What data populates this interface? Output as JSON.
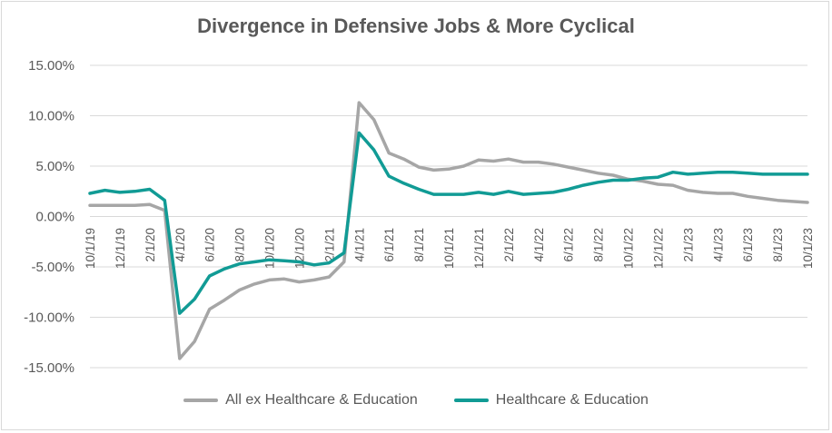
{
  "chart_data": {
    "type": "line",
    "title": "Divergence in Defensive Jobs & More Cyclical",
    "xlabel": "",
    "ylabel": "",
    "ylim": [
      -0.15,
      0.15
    ],
    "yticks": [
      0.15,
      0.1,
      0.05,
      0.0,
      -0.05,
      -0.1,
      -0.15
    ],
    "ytick_labels": [
      "15.00%",
      "10.00%",
      "5.00%",
      "0.00%",
      "-5.00%",
      "-10.00%",
      "-15.00%"
    ],
    "x_tick_labels": [
      "10/1/19",
      "12/1/19",
      "2/1/20",
      "4/1/20",
      "6/1/20",
      "8/1/20",
      "10/1/20",
      "12/1/20",
      "2/1/21",
      "4/1/21",
      "6/1/21",
      "8/1/21",
      "10/1/21",
      "12/1/21",
      "2/1/22",
      "4/1/22",
      "6/1/22",
      "8/1/22",
      "10/1/22",
      "12/1/22",
      "2/1/23",
      "4/1/23",
      "6/1/23",
      "8/1/23",
      "10/1/23"
    ],
    "x": [
      "10/1/19",
      "11/1/19",
      "12/1/19",
      "1/1/20",
      "2/1/20",
      "3/1/20",
      "4/1/20",
      "5/1/20",
      "6/1/20",
      "7/1/20",
      "8/1/20",
      "9/1/20",
      "10/1/20",
      "11/1/20",
      "12/1/20",
      "1/1/21",
      "2/1/21",
      "3/1/21",
      "4/1/21",
      "5/1/21",
      "6/1/21",
      "7/1/21",
      "8/1/21",
      "9/1/21",
      "10/1/21",
      "11/1/21",
      "12/1/21",
      "1/1/22",
      "2/1/22",
      "3/1/22",
      "4/1/22",
      "5/1/22",
      "6/1/22",
      "7/1/22",
      "8/1/22",
      "9/1/22",
      "10/1/22",
      "11/1/22",
      "12/1/22",
      "1/1/23",
      "2/1/23",
      "3/1/23",
      "4/1/23",
      "5/1/23",
      "6/1/23",
      "7/1/23",
      "8/1/23",
      "9/1/23",
      "10/1/23"
    ],
    "series": [
      {
        "name": "All ex Healthcare & Education",
        "color": "#a6a6a6",
        "values": [
          0.011,
          0.011,
          0.011,
          0.011,
          0.012,
          0.006,
          -0.141,
          -0.124,
          -0.092,
          -0.083,
          -0.073,
          -0.067,
          -0.063,
          -0.062,
          -0.065,
          -0.063,
          -0.06,
          -0.045,
          0.113,
          0.096,
          0.063,
          0.057,
          0.049,
          0.046,
          0.047,
          0.05,
          0.056,
          0.055,
          0.057,
          0.054,
          0.054,
          0.052,
          0.049,
          0.046,
          0.043,
          0.041,
          0.037,
          0.035,
          0.032,
          0.031,
          0.026,
          0.024,
          0.023,
          0.023,
          0.02,
          0.018,
          0.016,
          0.015,
          0.014
        ]
      },
      {
        "name": "Healthcare & Education",
        "color": "#119b95",
        "values": [
          0.023,
          0.026,
          0.024,
          0.025,
          0.027,
          0.016,
          -0.096,
          -0.082,
          -0.059,
          -0.052,
          -0.047,
          -0.045,
          -0.043,
          -0.044,
          -0.045,
          -0.048,
          -0.046,
          -0.036,
          0.083,
          0.066,
          0.04,
          0.033,
          0.027,
          0.022,
          0.022,
          0.022,
          0.024,
          0.022,
          0.025,
          0.022,
          0.023,
          0.024,
          0.027,
          0.031,
          0.034,
          0.036,
          0.036,
          0.038,
          0.039,
          0.044,
          0.042,
          0.043,
          0.044,
          0.044,
          0.043,
          0.042,
          0.042,
          0.042,
          0.042
        ]
      }
    ]
  }
}
